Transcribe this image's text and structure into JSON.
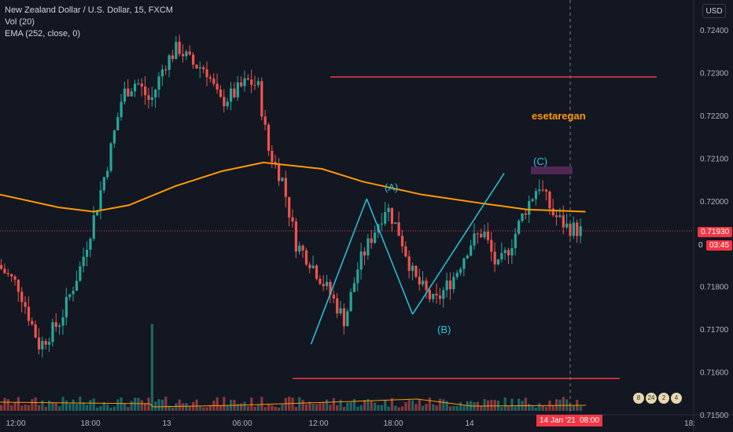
{
  "legend": {
    "symbol": "New Zealand Dollar / U.S. Dollar, 15, FXCM",
    "volume": "Vol (20)",
    "ema": "EMA (252, close, 0)"
  },
  "currency_button": "USD",
  "price_tags": {
    "last_price": "0.71930",
    "countdown": "03:45",
    "countdown_prefix": "0"
  },
  "time_tags": {
    "date": "14 Jan '21",
    "time": "08:00"
  },
  "annotation_author": "esetaregan",
  "wave_labels": [
    "(A)",
    "(B)",
    "(C)"
  ],
  "event_badges": [
    "8",
    "24",
    "2",
    "4"
  ],
  "colors": {
    "background": "#131722",
    "up": "#26a69a",
    "down": "#ef5350",
    "ema": "#ff9800",
    "levels": "#f23645",
    "wave": "#26c6da",
    "box": "#5c2a5e"
  },
  "chart_data": {
    "type": "candlestick",
    "title": "New Zealand Dollar / U.S. Dollar, 15, FXCM",
    "y_ticks": [
      "0.72400",
      "0.72300",
      "0.72200",
      "0.72100",
      "0.72000",
      "0.71930",
      "0.71800",
      "0.71700",
      "0.71600",
      "0.71500"
    ],
    "x_ticks": [
      "12:00",
      "18:00",
      "13",
      "06:00",
      "12:00",
      "18:00",
      "14",
      "12:00",
      "18:"
    ],
    "ylim": [
      0.715,
      0.7247
    ],
    "ema_points": [
      [
        0,
        0.72015
      ],
      [
        0.1,
        0.71985
      ],
      [
        0.16,
        0.71975
      ],
      [
        0.22,
        0.7199
      ],
      [
        0.3,
        0.72035
      ],
      [
        0.38,
        0.7207
      ],
      [
        0.45,
        0.7209
      ],
      [
        0.55,
        0.72075
      ],
      [
        0.62,
        0.72045
      ],
      [
        0.72,
        0.72015
      ],
      [
        0.82,
        0.71995
      ],
      [
        0.9,
        0.7198
      ],
      [
        1.0,
        0.71975
      ]
    ],
    "horizontal_levels": [
      0.7229,
      0.71585
    ],
    "waves": [
      {
        "label": "(A)",
        "points": [
          [
            0.475,
            0.71665
          ],
          [
            0.56,
            0.72005
          ]
        ]
      },
      {
        "label": "(B)",
        "points": [
          [
            0.56,
            0.72005
          ],
          [
            0.63,
            0.71735
          ]
        ]
      },
      {
        "label": "(C)",
        "points": [
          [
            0.63,
            0.71735
          ],
          [
            0.77,
            0.72065
          ]
        ]
      }
    ],
    "last_price": 0.7193
  }
}
